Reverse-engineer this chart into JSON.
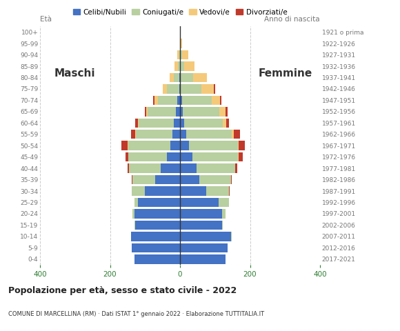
{
  "age_groups": [
    "0-4",
    "5-9",
    "10-14",
    "15-19",
    "20-24",
    "25-29",
    "30-34",
    "35-39",
    "40-44",
    "45-49",
    "50-54",
    "55-59",
    "60-64",
    "65-69",
    "70-74",
    "75-79",
    "80-84",
    "85-89",
    "90-94",
    "95-99",
    "100+"
  ],
  "birth_years": [
    "2017-2021",
    "2012-2016",
    "2007-2011",
    "2002-2006",
    "1997-2001",
    "1992-1996",
    "1987-1991",
    "1982-1986",
    "1977-1981",
    "1972-1976",
    "1967-1971",
    "1962-1966",
    "1957-1961",
    "1952-1956",
    "1947-1951",
    "1942-1946",
    "1937-1941",
    "1932-1936",
    "1927-1931",
    "1922-1926",
    "1921 o prima"
  ],
  "colors": {
    "celibe": "#4472c4",
    "coniugato": "#b8cfa0",
    "vedovo": "#f5c97a",
    "divorziato": "#c0392b"
  },
  "maschi": {
    "celibe": [
      130,
      138,
      140,
      128,
      130,
      120,
      100,
      70,
      55,
      38,
      28,
      22,
      18,
      12,
      8,
      2,
      2,
      0,
      0,
      0,
      0
    ],
    "coniugato": [
      0,
      0,
      0,
      2,
      5,
      10,
      38,
      65,
      90,
      110,
      120,
      105,
      100,
      80,
      55,
      35,
      15,
      5,
      2,
      0,
      0
    ],
    "vedovo": [
      0,
      0,
      0,
      0,
      0,
      0,
      0,
      0,
      0,
      0,
      2,
      2,
      3,
      5,
      10,
      12,
      12,
      10,
      5,
      0,
      0
    ],
    "divorziato": [
      0,
      0,
      0,
      0,
      0,
      0,
      0,
      3,
      5,
      8,
      18,
      10,
      8,
      3,
      3,
      0,
      0,
      0,
      0,
      0,
      0
    ]
  },
  "femmine": {
    "celibe": [
      130,
      135,
      145,
      120,
      120,
      110,
      75,
      55,
      48,
      35,
      25,
      18,
      12,
      8,
      5,
      2,
      2,
      0,
      0,
      0,
      0
    ],
    "coniugato": [
      0,
      0,
      2,
      3,
      10,
      30,
      65,
      90,
      110,
      130,
      140,
      130,
      110,
      105,
      85,
      60,
      35,
      12,
      5,
      2,
      0
    ],
    "vedovo": [
      0,
      0,
      0,
      0,
      0,
      0,
      0,
      0,
      0,
      2,
      2,
      5,
      10,
      18,
      25,
      35,
      40,
      30,
      18,
      3,
      2
    ],
    "divorziato": [
      0,
      0,
      0,
      0,
      0,
      0,
      2,
      3,
      5,
      12,
      18,
      18,
      8,
      5,
      3,
      3,
      0,
      0,
      0,
      0,
      0
    ]
  },
  "title": "Popolazione per età, sesso e stato civile - 2022",
  "subtitle": "COMUNE DI MARCELLINA (RM) · Dati ISTAT 1° gennaio 2022 · Elaborazione TUTTITALIA.IT",
  "xlabel_left": "Età",
  "xlabel_right": "Anno di nascita",
  "xlim": 400,
  "background_color": "#ffffff",
  "grid_color": "#cccccc",
  "axis_color": "#777777",
  "label_maschi": "Maschi",
  "label_femmine": "Femmine",
  "legend_labels": [
    "Celibi/Nubili",
    "Coniugati/e",
    "Vedovi/e",
    "Divorziati/e"
  ]
}
